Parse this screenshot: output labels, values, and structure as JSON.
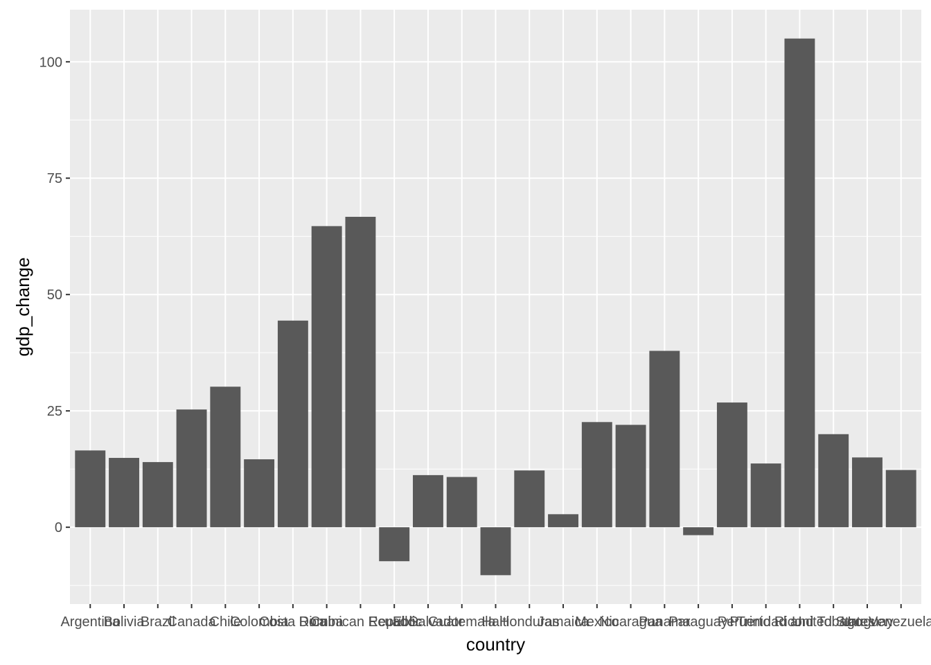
{
  "chart_data": {
    "type": "bar",
    "xlabel": "country",
    "ylabel": "gdp_change",
    "categories": [
      "Argentina",
      "Bolivia",
      "Brazil",
      "Canada",
      "Chile",
      "Colombia",
      "Costa Rica",
      "Cuba",
      "Dominican Republic",
      "Ecuador",
      "El Salvador",
      "Guatemala",
      "Haiti",
      "Honduras",
      "Jamaica",
      "Mexico",
      "Nicaragua",
      "Panama",
      "Paraguay",
      "Peru",
      "Puerto Rico",
      "Trinidad and Tobago",
      "United States",
      "Uruguay",
      "Venezuela"
    ],
    "values": [
      16.5,
      14.9,
      14.0,
      25.3,
      30.2,
      14.6,
      44.4,
      64.7,
      66.7,
      -7.3,
      11.2,
      10.8,
      -10.3,
      12.2,
      2.8,
      22.6,
      22.0,
      37.9,
      -1.7,
      26.8,
      13.7,
      105.0,
      20.0,
      15.0,
      12.3
    ],
    "ylim": [
      -16.5,
      111.2
    ],
    "yticks": [
      0,
      25,
      50,
      75,
      100
    ],
    "grid": true,
    "colors": {
      "bar": "#595959",
      "panel": "#ebebeb",
      "grid": "#ffffff"
    }
  }
}
